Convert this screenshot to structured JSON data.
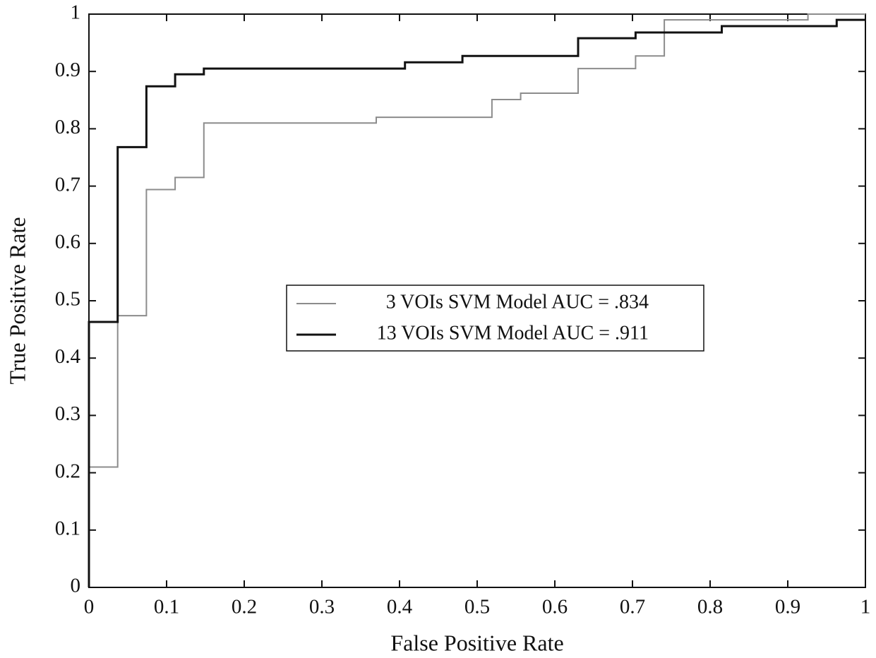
{
  "chart_data": {
    "type": "line",
    "step": true,
    "xlabel": "False Positive Rate",
    "ylabel": "True Positive Rate",
    "xlim": [
      0,
      1
    ],
    "ylim": [
      0,
      1
    ],
    "xticks": [
      0,
      0.1,
      0.2,
      0.3,
      0.4,
      0.5,
      0.6,
      0.7,
      0.8,
      0.9,
      1
    ],
    "yticks": [
      0,
      0.1,
      0.2,
      0.3,
      0.4,
      0.5,
      0.6,
      0.7,
      0.8,
      0.9,
      1
    ],
    "legend": "center",
    "grid": false,
    "series": [
      {
        "name": "3 VOIs SVM Model AUC = .834",
        "color": "#8c8c8c",
        "width": 2,
        "x": [
          0,
          0,
          0.037,
          0.037,
          0.074,
          0.074,
          0.111,
          0.111,
          0.148,
          0.148,
          0.37,
          0.37,
          0.519,
          0.519,
          0.556,
          0.556,
          0.63,
          0.63,
          0.704,
          0.704,
          0.741,
          0.741,
          0.926,
          0.926,
          1
        ],
        "values": [
          0,
          0.21,
          0.21,
          0.474,
          0.474,
          0.694,
          0.694,
          0.715,
          0.715,
          0.81,
          0.81,
          0.82,
          0.82,
          0.851,
          0.851,
          0.862,
          0.862,
          0.905,
          0.905,
          0.927,
          0.927,
          0.99,
          0.99,
          1,
          1
        ]
      },
      {
        "name": "13 VOIs SVM Model AUC = .911",
        "color": "#111111",
        "width": 3,
        "x": [
          0,
          0,
          0.037,
          0.037,
          0.074,
          0.074,
          0.111,
          0.111,
          0.148,
          0.148,
          0.407,
          0.407,
          0.481,
          0.481,
          0.63,
          0.63,
          0.704,
          0.704,
          0.815,
          0.815,
          0.963,
          0.963,
          1
        ],
        "values": [
          0,
          0.463,
          0.463,
          0.768,
          0.768,
          0.874,
          0.874,
          0.895,
          0.895,
          0.905,
          0.905,
          0.916,
          0.916,
          0.927,
          0.927,
          0.958,
          0.958,
          0.968,
          0.968,
          0.979,
          0.979,
          0.99,
          0.99
        ]
      }
    ]
  }
}
